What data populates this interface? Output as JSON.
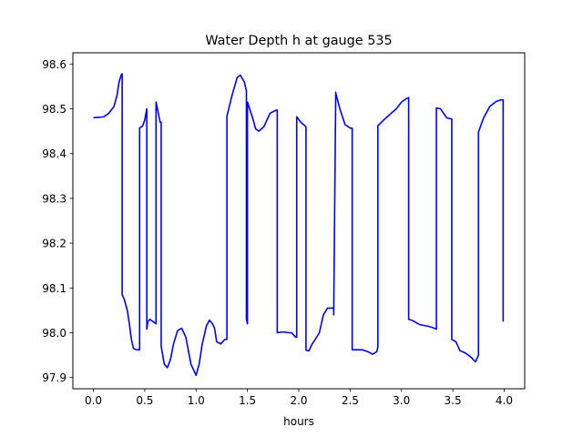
{
  "chart_data": {
    "type": "line",
    "title": "Water Depth h at gauge 535",
    "xlabel": "hours",
    "ylabel": "",
    "xlim": [
      -0.2,
      4.2
    ],
    "ylim": [
      97.875,
      98.625
    ],
    "xticks": [
      0.0,
      0.5,
      1.0,
      1.5,
      2.0,
      2.5,
      3.0,
      3.5,
      4.0
    ],
    "xtick_labels": [
      "0.0",
      "0.5",
      "1.0",
      "1.5",
      "2.0",
      "2.5",
      "3.0",
      "3.5",
      "4.0"
    ],
    "yticks": [
      97.9,
      98.0,
      98.1,
      98.2,
      98.3,
      98.4,
      98.5,
      98.6
    ],
    "ytick_labels": [
      "97.9",
      "98.0",
      "98.1",
      "98.2",
      "98.3",
      "98.4",
      "98.5",
      "98.6"
    ],
    "grid": false,
    "legend": "none",
    "series": [
      {
        "color": "#0000ff",
        "x": [
          0.0,
          0.1,
          0.15,
          0.2,
          0.23,
          0.25,
          0.27,
          0.28,
          0.28,
          0.3,
          0.33,
          0.35,
          0.37,
          0.39,
          0.42,
          0.45,
          0.45,
          0.48,
          0.5,
          0.52,
          0.52,
          0.53,
          0.55,
          0.58,
          0.61,
          0.61,
          0.65,
          0.66,
          0.66,
          0.69,
          0.72,
          0.75,
          0.78,
          0.82,
          0.86,
          0.9,
          0.95,
          1.0,
          1.03,
          1.06,
          1.1,
          1.13,
          1.16,
          1.18,
          1.2,
          1.24,
          1.28,
          1.3,
          1.3,
          1.35,
          1.4,
          1.43,
          1.47,
          1.49,
          1.49,
          1.5,
          1.5,
          1.55,
          1.58,
          1.61,
          1.66,
          1.72,
          1.78,
          1.79,
          1.79,
          1.85,
          1.9,
          1.93,
          1.97,
          1.98,
          1.98,
          2.02,
          2.07,
          2.07,
          2.08,
          2.1,
          2.13,
          2.16,
          2.2,
          2.24,
          2.28,
          2.32,
          2.34,
          2.34,
          2.36,
          2.36,
          2.4,
          2.45,
          2.5,
          2.52,
          2.52,
          2.56,
          2.62,
          2.68,
          2.72,
          2.76,
          2.77,
          2.77,
          2.85,
          2.9,
          2.95,
          3.0,
          3.05,
          3.07,
          3.07,
          3.1,
          3.14,
          3.18,
          3.25,
          3.3,
          3.34,
          3.34,
          3.38,
          3.44,
          3.49,
          3.49,
          3.53,
          3.57,
          3.62,
          3.68,
          3.72,
          3.75,
          3.75,
          3.8,
          3.86,
          3.92,
          3.97,
          3.99,
          3.99
        ],
        "values": [
          98.48,
          98.482,
          98.49,
          98.505,
          98.53,
          98.56,
          98.575,
          98.578,
          98.085,
          98.075,
          98.05,
          98.02,
          97.985,
          97.965,
          97.962,
          97.962,
          98.457,
          98.462,
          98.475,
          98.5,
          98.008,
          98.025,
          98.03,
          98.025,
          98.02,
          98.515,
          98.47,
          98.47,
          97.97,
          97.93,
          97.922,
          97.94,
          97.975,
          98.005,
          98.01,
          97.99,
          97.93,
          97.905,
          97.93,
          97.975,
          98.015,
          98.028,
          98.02,
          98.01,
          97.98,
          97.975,
          97.985,
          97.985,
          98.483,
          98.53,
          98.57,
          98.575,
          98.56,
          98.54,
          98.03,
          98.02,
          98.515,
          98.48,
          98.455,
          98.45,
          98.46,
          98.49,
          98.497,
          98.497,
          98.0,
          98.002,
          98.0,
          98.0,
          97.99,
          97.99,
          98.482,
          98.47,
          98.46,
          97.962,
          97.96,
          97.96,
          97.975,
          97.985,
          98.0,
          98.04,
          98.055,
          98.055,
          98.055,
          98.04,
          98.537,
          98.535,
          98.5,
          98.465,
          98.457,
          98.457,
          97.962,
          97.962,
          97.962,
          97.957,
          97.952,
          97.958,
          97.968,
          98.462,
          98.48,
          98.49,
          98.5,
          98.515,
          98.523,
          98.525,
          98.03,
          98.028,
          98.023,
          98.018,
          98.015,
          98.012,
          98.008,
          98.502,
          98.5,
          98.48,
          98.477,
          97.985,
          97.98,
          97.96,
          97.955,
          97.945,
          97.935,
          97.95,
          98.448,
          98.48,
          98.505,
          98.516,
          98.52,
          98.52,
          98.025
        ]
      }
    ]
  }
}
